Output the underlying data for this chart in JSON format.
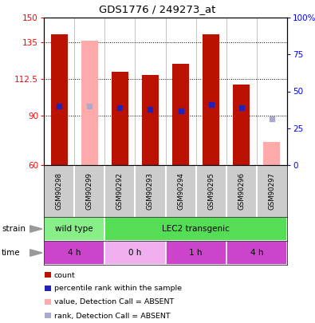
{
  "title": "GDS1776 / 249273_at",
  "samples": [
    "GSM90298",
    "GSM90299",
    "GSM90292",
    "GSM90293",
    "GSM90294",
    "GSM90295",
    "GSM90296",
    "GSM90297"
  ],
  "count_values": [
    140,
    136,
    117,
    115,
    122,
    140,
    109,
    74
  ],
  "rank_values": [
    96,
    96,
    95,
    94,
    93,
    97,
    95,
    88
  ],
  "absent_flags": [
    false,
    true,
    false,
    false,
    false,
    false,
    false,
    true
  ],
  "rank_absent_flags": [
    false,
    true,
    false,
    false,
    false,
    false,
    false,
    true
  ],
  "ymin": 60,
  "ymax": 150,
  "yticks": [
    60,
    90,
    112.5,
    135,
    150
  ],
  "ytick_labels": [
    "60",
    "90",
    "112.5",
    "135",
    "150"
  ],
  "right_yticks": [
    0,
    25,
    50,
    75,
    100
  ],
  "right_ytick_labels": [
    "0",
    "25",
    "50",
    "75",
    "100%"
  ],
  "strain_groups": [
    {
      "label": "wild type",
      "start": 0,
      "end": 2,
      "color": "#88ee88"
    },
    {
      "label": "LEC2 transgenic",
      "start": 2,
      "end": 8,
      "color": "#55dd55"
    }
  ],
  "time_groups": [
    {
      "label": "4 h",
      "start": 0,
      "end": 2,
      "color": "#cc44cc"
    },
    {
      "label": "0 h",
      "start": 2,
      "end": 4,
      "color": "#f0b0f0"
    },
    {
      "label": "1 h",
      "start": 4,
      "end": 6,
      "color": "#cc44cc"
    },
    {
      "label": "4 h",
      "start": 6,
      "end": 8,
      "color": "#cc44cc"
    }
  ],
  "bar_color_present": "#bb1100",
  "bar_color_absent": "#ffaaaa",
  "rank_color_present": "#2222bb",
  "rank_color_absent": "#aaaacc",
  "bg_color": "#cccccc",
  "plot_bg": "#ffffff",
  "legend": [
    {
      "color": "#bb1100",
      "label": "count"
    },
    {
      "color": "#2222bb",
      "label": "percentile rank within the sample"
    },
    {
      "color": "#ffaaaa",
      "label": "value, Detection Call = ABSENT"
    },
    {
      "color": "#aaaacc",
      "label": "rank, Detection Call = ABSENT"
    }
  ]
}
